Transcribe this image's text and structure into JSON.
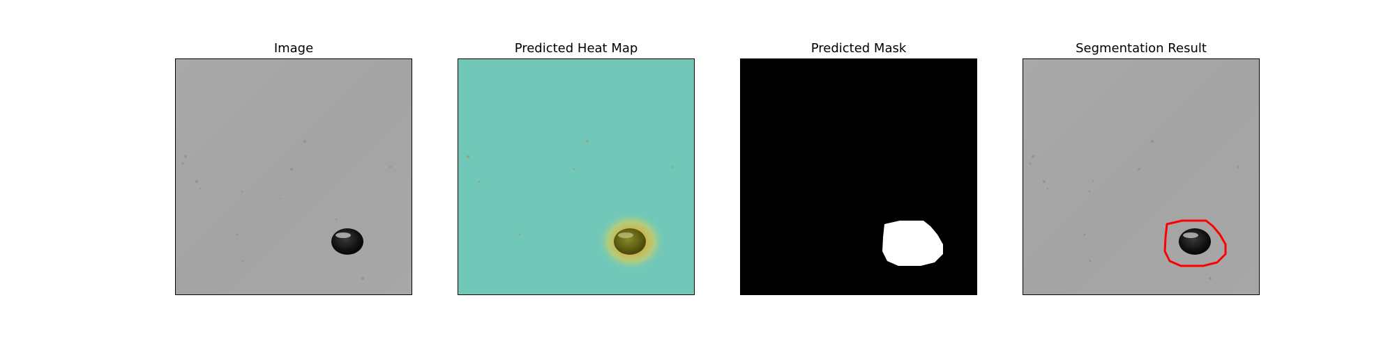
{
  "panels": [
    {
      "title": "Image"
    },
    {
      "title": "Predicted Heat Map"
    },
    {
      "title": "Predicted Mask"
    },
    {
      "title": "Segmentation Result"
    }
  ],
  "colors": {
    "surface_gray": "#a6a6a6",
    "heatmap_teal": "#72c8b8",
    "mask_background": "#000000",
    "mask_foreground": "#ffffff",
    "contour": "#ff0000"
  }
}
